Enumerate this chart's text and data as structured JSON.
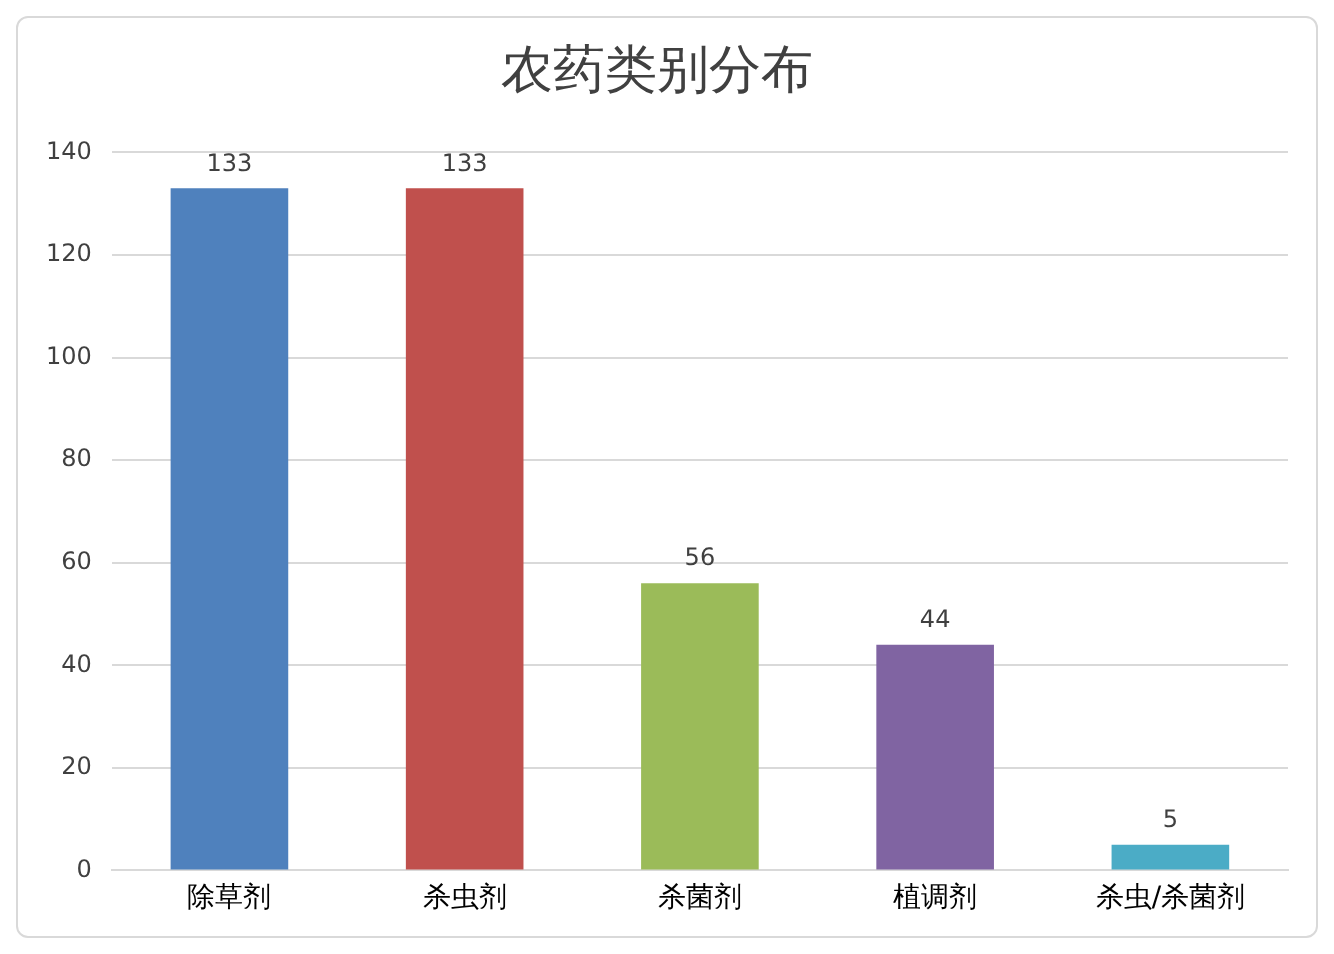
{
  "chart_data": {
    "type": "bar",
    "title": "农药类别分布",
    "categories": [
      "除草剂",
      "杀虫剂",
      "杀菌剂",
      "植调剂",
      "杀虫/杀菌剂"
    ],
    "values": [
      133,
      133,
      56,
      44,
      5
    ],
    "colors": [
      "#4f81bd",
      "#c0504d",
      "#9bbb59",
      "#8064a2",
      "#4bacc6"
    ],
    "ylim": [
      0,
      140
    ],
    "yticks": [
      0,
      20,
      40,
      60,
      80,
      100,
      120,
      140
    ],
    "grid": "y",
    "data_labels": true,
    "legend": false
  }
}
